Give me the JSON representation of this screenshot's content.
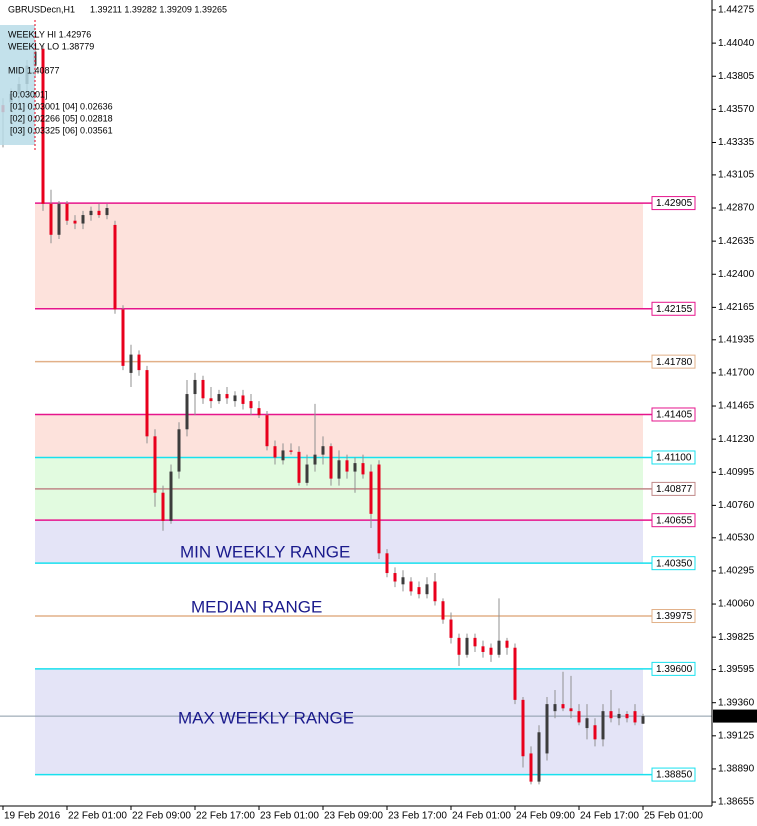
{
  "chart_data": {
    "type": "candlestick",
    "symbol": "GBRUSDecn,H1",
    "quote": "1.39211 1.39282 1.39209 1.39265",
    "info": [
      "WEEKLY HI 1.42976",
      "WEEKLY LO 1.38779",
      "MID 1.40877",
      "[0.03001]",
      "[01] 0.03001  [04] 0.02636",
      "[02] 0.02266  [05] 0.02818",
      "[03] 0.03325  [06] 0.03561"
    ],
    "range_labels": [
      "MIN WEEKLY RANGE",
      "MEDIAN RANGE",
      "MAX WEEKLY RANGE"
    ],
    "categories": [
      "19 Feb 2016",
      null,
      null,
      null,
      null,
      null,
      null,
      null,
      "22 Feb 01:00",
      null,
      null,
      null,
      null,
      null,
      null,
      null,
      "22 Feb 09:00",
      null,
      null,
      null,
      null,
      null,
      null,
      null,
      "22 Feb 17:00",
      null,
      null,
      null,
      null,
      null,
      null,
      null,
      "23 Feb 01:00",
      null,
      null,
      null,
      null,
      null,
      null,
      null,
      "23 Feb 09:00",
      null,
      null,
      null,
      null,
      null,
      null,
      null,
      "23 Feb 17:00",
      null,
      null,
      null,
      null,
      null,
      null,
      null,
      "24 Feb 01:00",
      null,
      null,
      null,
      null,
      null,
      null,
      null,
      "24 Feb 09:00",
      null,
      null,
      null,
      null,
      null,
      null,
      null,
      "24 Feb 17:00",
      null,
      null,
      null,
      null,
      null,
      null,
      null,
      "25 Feb 01:00"
    ],
    "open": [
      1.436,
      1.4362,
      1.4368,
      1.4375,
      1.4388,
      1.44,
      1.429,
      1.4268,
      1.429,
      1.4278,
      1.4276,
      1.4282,
      1.4285,
      1.4282,
      1.4275,
      1.4215,
      1.417,
      1.4183,
      1.4172,
      1.4125,
      1.4085,
      1.4065,
      1.41,
      1.413,
      1.4155,
      1.4165,
      1.4152,
      1.415,
      1.4155,
      1.415,
      1.4154,
      1.415,
      1.4145,
      1.414,
      1.4118,
      1.4108,
      1.4115,
      1.4114,
      1.4092,
      1.4105,
      1.4112,
      1.4118,
      1.4095,
      1.4108,
      1.41,
      1.4106,
      1.41,
      1.4105,
      1.4042,
      1.4028,
      1.402,
      1.4022,
      1.4018,
      1.4013,
      1.4022,
      1.4008,
      1.3995,
      1.3982,
      1.397,
      1.3982,
      1.3976,
      1.3975,
      1.397,
      1.398,
      1.3975,
      1.3938,
      1.39,
      1.388,
      1.39,
      1.393,
      1.3935,
      1.3932,
      1.393,
      1.3918,
      1.392,
      1.391,
      1.393,
      1.3925,
      1.3928,
      1.393,
      1.39211
    ],
    "high": [
      1.4365,
      1.4372,
      1.438,
      1.4392,
      1.4405,
      1.4403,
      1.43,
      1.4292,
      1.4292,
      1.4282,
      1.4285,
      1.4288,
      1.429,
      1.429,
      1.4278,
      1.4218,
      1.419,
      1.4186,
      1.4175,
      1.413,
      1.409,
      1.4105,
      1.4135,
      1.4165,
      1.417,
      1.4168,
      1.416,
      1.4158,
      1.416,
      1.4157,
      1.4158,
      1.4155,
      1.415,
      1.4143,
      1.4122,
      1.412,
      1.412,
      1.4118,
      1.4112,
      1.4148,
      1.4125,
      1.412,
      1.4115,
      1.4112,
      1.411,
      1.4112,
      1.4105,
      1.4108,
      1.4045,
      1.4032,
      1.403,
      1.4025,
      1.4022,
      1.4025,
      1.4028,
      1.401,
      1.4,
      1.3985,
      1.3985,
      1.3985,
      1.398,
      1.3978,
      1.401,
      1.3982,
      1.3978,
      1.394,
      1.3905,
      1.392,
      1.394,
      1.3945,
      1.3958,
      1.3955,
      1.3935,
      1.3935,
      1.3925,
      1.3935,
      1.3945,
      1.3932,
      1.393,
      1.3935,
      1.39282
    ],
    "low": [
      1.433,
      1.4355,
      1.4362,
      1.437,
      1.438,
      1.4285,
      1.4262,
      1.4265,
      1.4275,
      1.4272,
      1.4272,
      1.4278,
      1.428,
      1.4279,
      1.4212,
      1.4172,
      1.416,
      1.4168,
      1.412,
      1.4075,
      1.4058,
      1.4063,
      1.4095,
      1.4125,
      1.414,
      1.4148,
      1.4145,
      1.4148,
      1.4148,
      1.4146,
      1.4144,
      1.414,
      1.4138,
      1.4115,
      1.4105,
      1.4105,
      1.4112,
      1.409,
      1.409,
      1.41,
      1.4105,
      1.409,
      1.409,
      1.4095,
      1.4085,
      1.4095,
      1.406,
      1.4038,
      1.4025,
      1.4018,
      1.4015,
      1.4012,
      1.401,
      1.401,
      1.4005,
      1.3992,
      1.3978,
      1.3962,
      1.3968,
      1.3972,
      1.3968,
      1.3965,
      1.3968,
      1.397,
      1.3935,
      1.389,
      1.3878,
      1.3878,
      1.3895,
      1.3925,
      1.393,
      1.3925,
      1.392,
      1.391,
      1.3905,
      1.3905,
      1.3922,
      1.392,
      1.3922,
      1.392,
      1.39209
    ],
    "close": [
      1.4355,
      1.4368,
      1.4375,
      1.4388,
      1.4398,
      1.429,
      1.4268,
      1.429,
      1.4278,
      1.4276,
      1.4282,
      1.4285,
      1.4282,
      1.4287,
      1.4215,
      1.4175,
      1.4183,
      1.4172,
      1.4125,
      1.4085,
      1.4065,
      1.41,
      1.413,
      1.4155,
      1.4165,
      1.4152,
      1.415,
      1.4155,
      1.4152,
      1.4154,
      1.4148,
      1.4145,
      1.414,
      1.4118,
      1.411,
      1.4115,
      1.4114,
      1.4092,
      1.4105,
      1.4112,
      1.4118,
      1.4095,
      1.4108,
      1.41,
      1.4106,
      1.4098,
      1.407,
      1.4042,
      1.4028,
      1.4022,
      1.4025,
      1.4015,
      1.4013,
      1.402,
      1.4008,
      1.3995,
      1.3982,
      1.397,
      1.3982,
      1.3976,
      1.3972,
      1.397,
      1.398,
      1.3975,
      1.3938,
      1.3898,
      1.388,
      1.3915,
      1.3935,
      1.3935,
      1.3932,
      1.393,
      1.3922,
      1.3925,
      1.391,
      1.393,
      1.3925,
      1.3928,
      1.3925,
      1.3922,
      1.39265
    ],
    "up_color": "#3c3c3c",
    "down_color": "#e8001c",
    "wick_color": "#909090",
    "ylim": [
      1.38627,
      1.44346
    ],
    "yticks": [
      1.44275,
      {
        "value": 1.4404,
        "label": "1.44040"
      },
      1.43805,
      {
        "value": 1.4357,
        "label": "1.43570"
      },
      1.43335,
      1.43105,
      {
        "value": 1.4287,
        "label": "1.42870"
      },
      1.42635,
      {
        "value": 1.424,
        "label": "1.42400"
      },
      1.42165,
      1.41935,
      {
        "value": 1.417,
        "label": "1.41700"
      },
      1.41465,
      {
        "value": 1.4123,
        "label": "1.41230"
      },
      1.40995,
      {
        "value": 1.4076,
        "label": "1.40760"
      },
      {
        "value": 1.4053,
        "label": "1.40530"
      },
      1.40295,
      {
        "value": 1.4006,
        "label": "1.40060"
      },
      1.39825,
      1.39595,
      {
        "value": 1.3936,
        "label": "1.39360"
      },
      1.39125,
      {
        "value": 1.3889,
        "label": "1.38890"
      },
      1.38655
    ],
    "zones": [
      {
        "from": 1.42905,
        "to": 1.42155,
        "color": "#fde2dc"
      },
      {
        "from": 1.41405,
        "to": 1.411,
        "color": "#fde2dc"
      },
      {
        "from": 1.411,
        "to": 1.40655,
        "color": "#e2fbe0"
      },
      {
        "from": 1.40655,
        "to": 1.4035,
        "color": "#e4e4f7"
      },
      {
        "from": 1.396,
        "to": 1.3885,
        "color": "#e4e4f7"
      }
    ],
    "levels": [
      {
        "value": 1.42905,
        "label": "1.42905",
        "color": "#e6158c"
      },
      {
        "value": 1.42155,
        "label": "1.42155",
        "color": "#e6158c"
      },
      {
        "value": 1.4178,
        "label": "1.41780",
        "color": "#e2b088"
      },
      {
        "value": 1.41405,
        "label": "1.41405",
        "color": "#e6158c"
      },
      {
        "value": 1.411,
        "label": "1.41100",
        "color": "#18e0ee"
      },
      {
        "value": 1.40877,
        "label": "1.40877",
        "color": "#c08888"
      },
      {
        "value": 1.40655,
        "label": "1.40655",
        "color": "#e6158c"
      },
      {
        "value": 1.4035,
        "label": "1.40350",
        "color": "#18e0ee"
      },
      {
        "value": 1.39975,
        "label": "1.39975",
        "color": "#e2b088"
      },
      {
        "value": 1.396,
        "label": "1.39600",
        "color": "#18e0ee"
      },
      {
        "value": 1.3885,
        "label": "1.38850",
        "color": "#18e0ee"
      }
    ],
    "current": {
      "value": 1.39265,
      "label": "1.39265"
    }
  }
}
